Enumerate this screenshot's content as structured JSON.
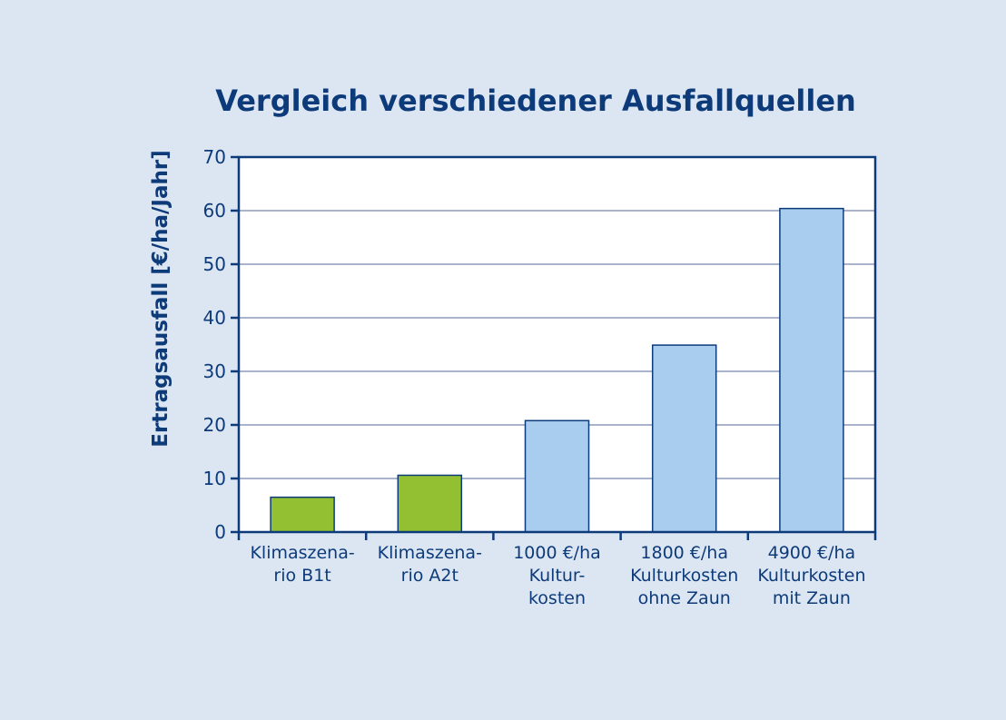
{
  "chart_data": {
    "type": "bar",
    "title": "Vergleich verschiedener Ausfallquellen",
    "xlabel": "",
    "ylabel": "Ertragsausfall [€/ha/Jahr]",
    "ylim": [
      0,
      70
    ],
    "yticks": [
      "0",
      "10",
      "20",
      "30",
      "40",
      "50",
      "60",
      "70"
    ],
    "grid": true,
    "categories": [
      [
        "Klimaszena-",
        "rio B1t"
      ],
      [
        "Klimaszena-",
        "rio A2t"
      ],
      [
        "1000 €/ha",
        "Kultur-",
        "kosten"
      ],
      [
        "1800 €/ha",
        "Kulturkosten",
        "ohne Zaun"
      ],
      [
        "4900 €/ha",
        "Kulturkosten",
        "mit Zaun"
      ]
    ],
    "values": [
      6.5,
      10.6,
      20.8,
      34.9,
      60.4
    ],
    "colors": [
      "#92c032",
      "#92c032",
      "#a8cdef",
      "#a8cdef",
      "#a8cdef"
    ],
    "axis_color": "#0d3b7a",
    "grid_color": "#a9b3cc",
    "bar_edge_color": "#0d3b7a",
    "background": "#dce6f3",
    "plot_background": "#ffffff"
  }
}
